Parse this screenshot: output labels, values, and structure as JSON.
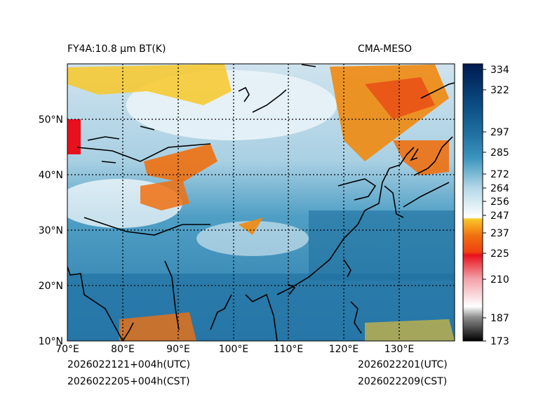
{
  "header": {
    "left_title": "FY4A:10.8 µm BT(K)",
    "right_title": "CMA-MESO"
  },
  "footer": {
    "init_utc": "2026022121+004h(UTC)",
    "init_cst": "2026022205+004h(CST)",
    "valid_utc": "2026022201(UTC)",
    "valid_cst": "2026022209(CST)"
  },
  "map": {
    "lon_ticks": [
      "70°E",
      "80°E",
      "90°E",
      "100°E",
      "110°E",
      "120°E",
      "130°E"
    ],
    "lat_ticks": [
      "10°N",
      "20°N",
      "30°N",
      "40°N",
      "50°N"
    ],
    "lon_range": [
      70,
      140
    ],
    "lat_range": [
      10,
      60
    ]
  },
  "colorbar": {
    "min": 173,
    "max": 337,
    "tick_values": [
      173,
      187,
      210,
      225,
      237,
      247,
      256,
      264,
      272,
      285,
      297,
      322,
      334
    ],
    "tick_labels": [
      "173",
      "187",
      "210",
      "225",
      "237",
      "247",
      "256",
      "264",
      "272",
      "285",
      "297",
      "322",
      "334"
    ],
    "colors": {
      "black": "#000000",
      "gray": "#8c8c8c",
      "white": "#ffffff",
      "pink": "#f2a0a8",
      "red": "#e8101c",
      "orange": "#f07010",
      "yellow": "#f8c828",
      "light_blue": "#b6d9e8",
      "mid_blue": "#3b95be",
      "ocean_blue": "#1f6f9f",
      "navy": "#001a50"
    }
  }
}
